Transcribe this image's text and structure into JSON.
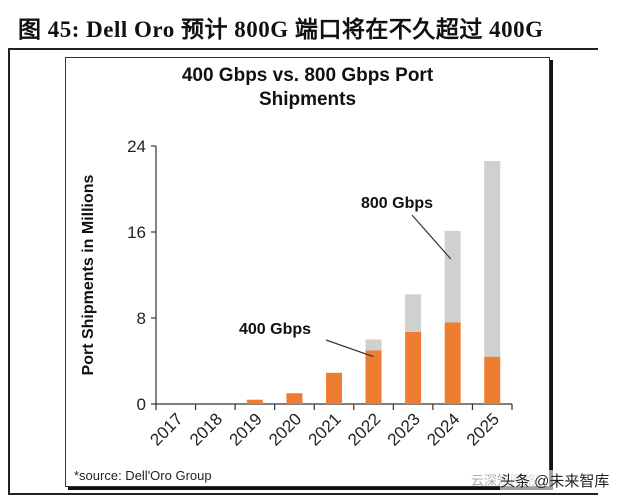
{
  "figure": {
    "title": "图 45:  Dell Oro 预计 800G 端口将在不久超过 400G",
    "source": "*source: Dell'Oro Group",
    "watermark_faint": "云深知网络",
    "watermark": "头条 @未来智库"
  },
  "colors": {
    "series_400": "#ED7D31",
    "series_800": "#D0D0D0",
    "axis": "#333333"
  },
  "chart_data": {
    "type": "bar",
    "stacked": true,
    "title": "400 Gbps vs. 800 Gbps Port Shipments",
    "title_line1": "400 Gbps vs. 800 Gbps Port",
    "title_line2": "Shipments",
    "xlabel": "",
    "ylabel": "Port Shipments in Millions",
    "ylim": [
      0,
      24
    ],
    "yticks": [
      0,
      8,
      16,
      24
    ],
    "grid": false,
    "categories": [
      "2017",
      "2018",
      "2019",
      "2020",
      "2021",
      "2022",
      "2023",
      "2024",
      "2025"
    ],
    "series": [
      {
        "name": "400 Gbps",
        "values": [
          0,
          0,
          0.4,
          1.0,
          2.9,
          5.0,
          6.7,
          7.6,
          4.4
        ]
      },
      {
        "name": "800 Gbps",
        "values": [
          0,
          0,
          0,
          0,
          0,
          1.0,
          3.5,
          8.5,
          18.2
        ]
      }
    ],
    "annotations": [
      {
        "text": "400 Gbps",
        "target": "2022"
      },
      {
        "text": "800 Gbps",
        "target": "2024"
      }
    ]
  }
}
